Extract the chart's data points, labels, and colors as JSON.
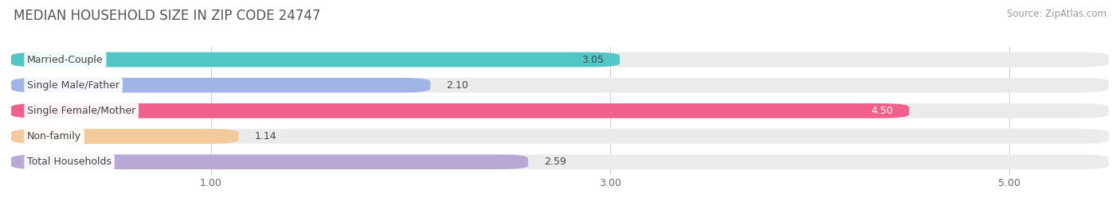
{
  "title": "MEDIAN HOUSEHOLD SIZE IN ZIP CODE 24747",
  "source": "Source: ZipAtlas.com",
  "categories": [
    "Married-Couple",
    "Single Male/Father",
    "Single Female/Mother",
    "Non-family",
    "Total Households"
  ],
  "values": [
    3.05,
    2.1,
    4.5,
    1.14,
    2.59
  ],
  "bar_colors": [
    "#52c5c5",
    "#a0b4e8",
    "#f0608a",
    "#f5ca9a",
    "#b8a8d5"
  ],
  "bar_bg_color": "#ebebeb",
  "value_text_colors": [
    "#444444",
    "#444444",
    "#ffffff",
    "#444444",
    "#444444"
  ],
  "xlim_min": 0.0,
  "xlim_max": 5.5,
  "xticks": [
    1.0,
    3.0,
    5.0
  ],
  "xtick_labels": [
    "1.00",
    "3.00",
    "5.00"
  ],
  "title_fontsize": 12,
  "source_fontsize": 8.5,
  "label_fontsize": 9,
  "value_fontsize": 9,
  "background_color": "#ffffff",
  "bar_height": 0.58,
  "bar_gap": 0.18
}
